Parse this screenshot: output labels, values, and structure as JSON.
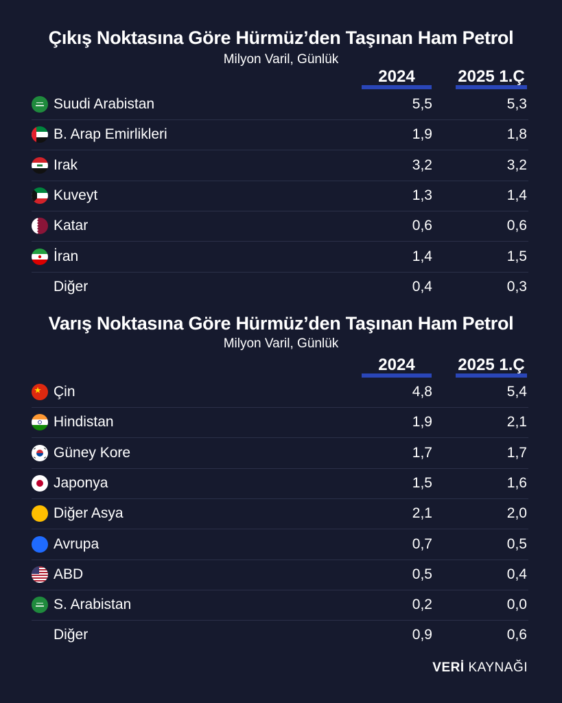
{
  "source": {
    "bold": "VERİ",
    "rest": "KAYNAĞI"
  },
  "chart_data": [
    {
      "type": "table",
      "title": "Çıkış Noktasına Göre Hürmüz’den Taşınan Ham Petrol",
      "subtitle": "Milyon Varil, Günlük",
      "columns": [
        "2024",
        "2025 1.Ç"
      ],
      "rows": [
        {
          "label": "Suudi Arabistan",
          "flag": "saudi-arabia-flag-icon",
          "values": [
            "5,5",
            "5,3"
          ]
        },
        {
          "label": "B. Arap Emirlikleri",
          "flag": "uae-flag-icon",
          "values": [
            "1,9",
            "1,8"
          ]
        },
        {
          "label": "Irak",
          "flag": "iraq-flag-icon",
          "values": [
            "3,2",
            "3,2"
          ]
        },
        {
          "label": "Kuveyt",
          "flag": "kuwait-flag-icon",
          "values": [
            "1,3",
            "1,4"
          ]
        },
        {
          "label": "Katar",
          "flag": "qatar-flag-icon",
          "values": [
            "0,6",
            "0,6"
          ]
        },
        {
          "label": "İran",
          "flag": "iran-flag-icon",
          "values": [
            "1,4",
            "1,5"
          ]
        },
        {
          "label": "Diğer",
          "flag": "",
          "values": [
            "0,4",
            "0,3"
          ]
        }
      ]
    },
    {
      "type": "table",
      "title": "Varış Noktasına Göre Hürmüz’den Taşınan Ham Petrol",
      "subtitle": "Milyon Varil, Günlük",
      "columns": [
        "2024",
        "2025 1.Ç"
      ],
      "rows": [
        {
          "label": "Çin",
          "flag": "china-flag-icon",
          "values": [
            "4,8",
            "5,4"
          ]
        },
        {
          "label": "Hindistan",
          "flag": "india-flag-icon",
          "values": [
            "1,9",
            "2,1"
          ]
        },
        {
          "label": "Güney Kore",
          "flag": "south-korea-flag-icon",
          "values": [
            "1,7",
            "1,7"
          ]
        },
        {
          "label": "Japonya",
          "flag": "japan-flag-icon",
          "values": [
            "1,5",
            "1,6"
          ]
        },
        {
          "label": "Diğer Asya",
          "flag": "other-asia-dot-icon",
          "values": [
            "2,1",
            "2,0"
          ]
        },
        {
          "label": "Avrupa",
          "flag": "europe-dot-icon",
          "values": [
            "0,7",
            "0,5"
          ]
        },
        {
          "label": "ABD",
          "flag": "usa-flag-icon",
          "values": [
            "0,5",
            "0,4"
          ]
        },
        {
          "label": "S. Arabistan",
          "flag": "saudi-arabia-flag-icon",
          "values": [
            "0,2",
            "0,0"
          ]
        },
        {
          "label": "Diğer",
          "flag": "",
          "values": [
            "0,9",
            "0,6"
          ]
        }
      ]
    }
  ],
  "colors": {
    "background": "#161a2e",
    "accent": "#2a46b8",
    "separator": "#2b3049",
    "other_asia": "#ffbf00",
    "europe": "#1f6bff"
  }
}
